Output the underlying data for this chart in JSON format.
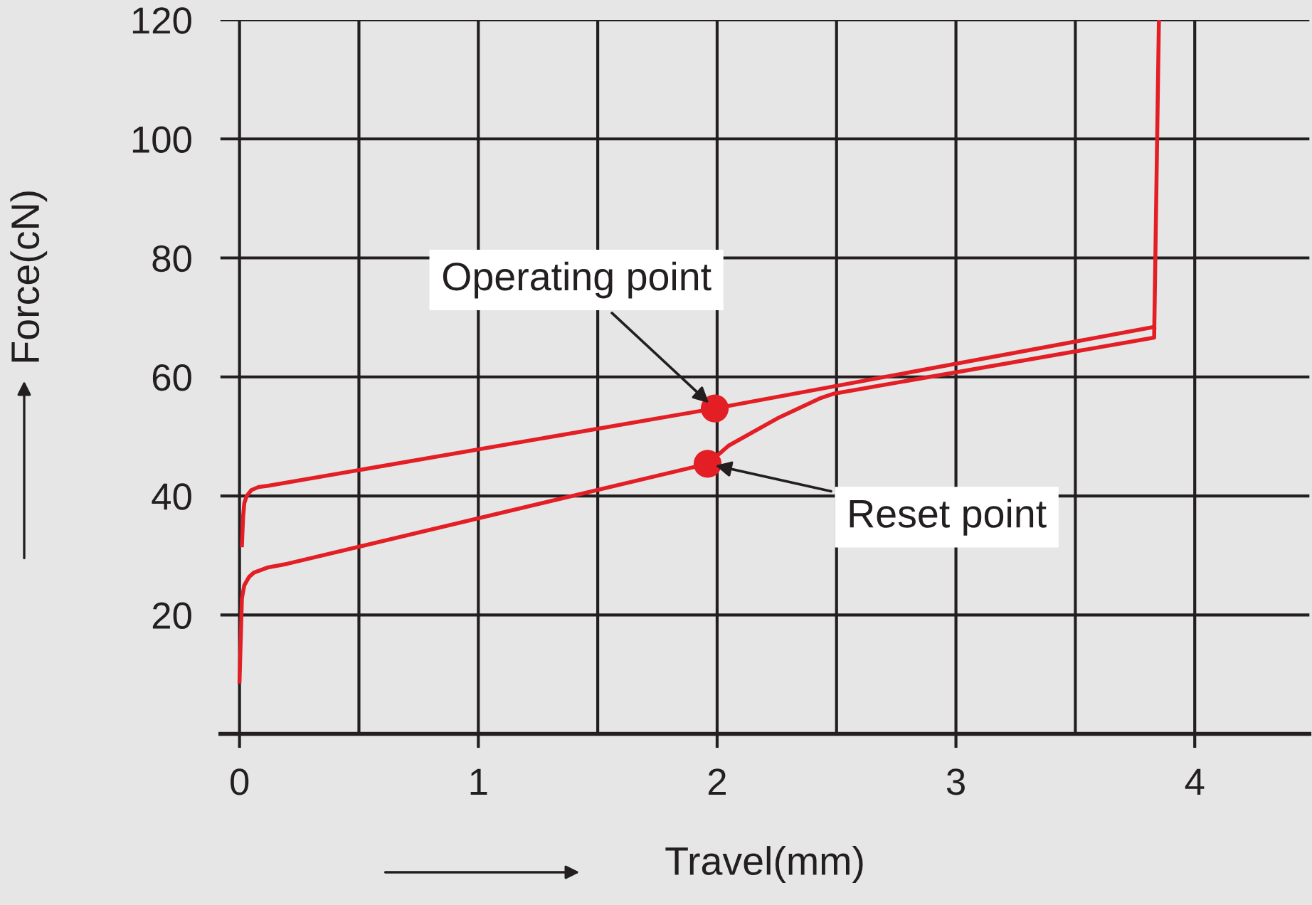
{
  "chart_data": {
    "type": "line",
    "xlabel": "Travel(mm)",
    "ylabel": "Force(cN)",
    "xlim": [
      -0.08,
      4.48
    ],
    "ylim": [
      0,
      120
    ],
    "xticks": [
      0,
      {
        "value": 0.5,
        "label": null
      },
      1,
      {
        "value": 1.5,
        "label": null
      },
      2,
      {
        "value": 2.5,
        "label": null
      },
      3,
      {
        "value": 3.5,
        "label": null
      },
      4
    ],
    "yticks": [
      {
        "value": 0,
        "label": null
      },
      20,
      40,
      60,
      80,
      100,
      120
    ],
    "grid": true,
    "marker": "none",
    "line_style": "solid",
    "series": [
      {
        "color": "#e31e24",
        "x": [
          0.01,
          0.015,
          0.02,
          0.03,
          0.05,
          0.08,
          0.12,
          1.99,
          3.83
        ],
        "values": [
          31.7,
          36.5,
          38.8,
          40.0,
          41.0,
          41.5,
          41.7,
          54.7,
          68.4
        ]
      },
      {
        "color": "#e31e24",
        "x": [
          0.0,
          0.01,
          0.02,
          0.04,
          0.06,
          0.12,
          0.2,
          1.96,
          2.05,
          2.26,
          2.43,
          2.49,
          3.83,
          3.85
        ],
        "values": [
          8.8,
          22.8,
          25.0,
          26.4,
          27.1,
          28.0,
          28.6,
          45.4,
          48.5,
          53.2,
          56.4,
          57.2,
          66.6,
          120
        ]
      },
      {
        "type": "scatter",
        "marker": "circle",
        "color": "#e31e24",
        "x": [
          1.99,
          1.96
        ],
        "values": [
          54.7,
          45.4
        ]
      }
    ],
    "annotations": [
      {
        "text": "Operating point",
        "x": 1.99,
        "y": 54.7
      },
      {
        "text": "Reset point",
        "x": 1.96,
        "y": 45.4
      }
    ]
  }
}
